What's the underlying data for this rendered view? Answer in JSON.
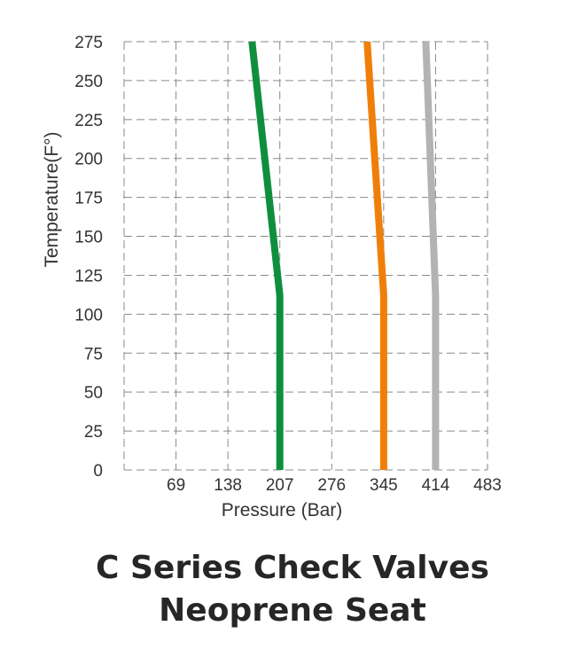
{
  "chart_data": {
    "type": "line",
    "xlabel": "Pressure (Bar)",
    "ylabel": "Temperature(F°)",
    "x_ticks": [
      69,
      138,
      207,
      276,
      345,
      414,
      483
    ],
    "y_ticks": [
      0,
      25,
      50,
      75,
      100,
      125,
      150,
      175,
      200,
      225,
      250,
      275
    ],
    "xlim": [
      0,
      483
    ],
    "ylim": [
      0,
      275
    ],
    "grid": true,
    "series": [
      {
        "color": "#0f8f3e",
        "points": [
          [
            207,
            0
          ],
          [
            207,
            112
          ],
          [
            170,
            275
          ]
        ]
      },
      {
        "color": "#f07f09",
        "points": [
          [
            345,
            0
          ],
          [
            345,
            112
          ],
          [
            323,
            275
          ]
        ]
      },
      {
        "color": "#b3b3b3",
        "points": [
          [
            414,
            0
          ],
          [
            414,
            112
          ],
          [
            401,
            275
          ]
        ]
      }
    ]
  },
  "caption": {
    "line1": "C Series Check Valves",
    "line2": "Neoprene Seat"
  }
}
